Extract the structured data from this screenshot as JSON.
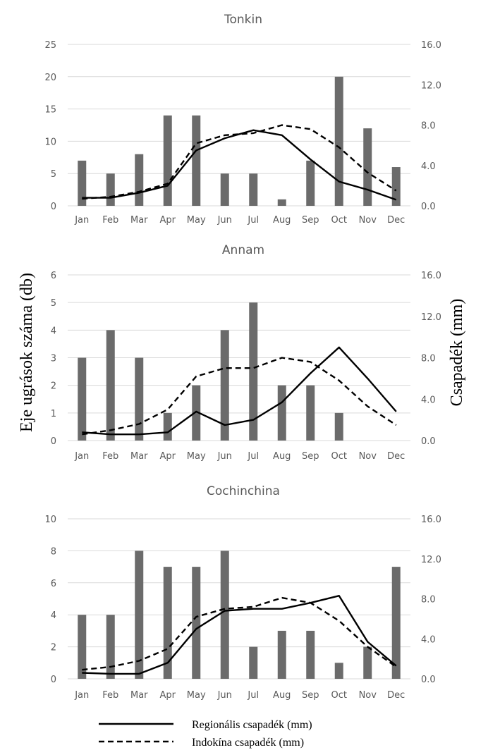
{
  "y_axis_left_label": "Eje ugrások száma (db)",
  "y_axis_right_label": "Csapadék (mm)",
  "legend": {
    "regional": "Regionális csapadék (mm)",
    "indochina": "Indokína csapadék (mm)"
  },
  "colors": {
    "bars": "#6b6b6b",
    "lines": "#000000",
    "grid": "#d9d9d9",
    "text": "#595959"
  },
  "chart_data": [
    {
      "type": "bar",
      "title": "Tonkin",
      "categories": [
        "Jan",
        "Feb",
        "Mar",
        "Apr",
        "May",
        "Jun",
        "Jul",
        "Aug",
        "Sep",
        "Oct",
        "Nov",
        "Dec"
      ],
      "left_ticks": [
        "0",
        "5",
        "10",
        "15",
        "20",
        "25"
      ],
      "right_ticks": [
        "0.0",
        "4.0",
        "8.0",
        "12.0",
        "16.0"
      ],
      "ylim_left": [
        0,
        25
      ],
      "ylim_right": [
        0,
        16
      ],
      "series": [
        {
          "name": "Eje ugrások száma (db)",
          "kind": "bar",
          "axis": "left",
          "values": [
            7,
            5,
            8,
            14,
            14,
            5,
            5,
            1,
            7,
            20,
            12,
            6
          ]
        },
        {
          "name": "Regionális csapadék (mm)",
          "kind": "line",
          "axis": "right",
          "style": "solid",
          "values": [
            0.8,
            0.8,
            1.3,
            2.0,
            5.5,
            6.7,
            7.5,
            7.0,
            4.6,
            2.4,
            1.6,
            0.6
          ]
        },
        {
          "name": "Indokína csapadék (mm)",
          "kind": "line",
          "axis": "right",
          "style": "dashed",
          "values": [
            0.7,
            0.9,
            1.4,
            2.2,
            6.2,
            7.0,
            7.2,
            8.0,
            7.6,
            5.8,
            3.3,
            1.5
          ]
        }
      ]
    },
    {
      "type": "bar",
      "title": "Annam",
      "categories": [
        "Jan",
        "Feb",
        "Mar",
        "Apr",
        "May",
        "Jun",
        "Jul",
        "Aug",
        "Sep",
        "Oct",
        "Nov",
        "Dec"
      ],
      "left_ticks": [
        "0",
        "1",
        "2",
        "3",
        "4",
        "5",
        "6"
      ],
      "right_ticks": [
        "0.0",
        "4.0",
        "8.0",
        "12.0",
        "16.0"
      ],
      "ylim_left": [
        0,
        6
      ],
      "ylim_right": [
        0,
        16
      ],
      "series": [
        {
          "name": "Eje ugrások száma (db)",
          "kind": "bar",
          "axis": "left",
          "values": [
            3,
            4,
            3,
            1,
            2,
            4,
            5,
            2,
            2,
            1,
            0,
            0
          ]
        },
        {
          "name": "Regionális csapadék (mm)",
          "kind": "line",
          "axis": "right",
          "style": "solid",
          "values": [
            0.8,
            0.6,
            0.6,
            0.8,
            2.8,
            1.5,
            2.0,
            3.7,
            6.5,
            9.0,
            6.0,
            2.8
          ]
        },
        {
          "name": "Indokína csapadék (mm)",
          "kind": "line",
          "axis": "right",
          "style": "dashed",
          "values": [
            0.6,
            1.0,
            1.6,
            3.0,
            6.2,
            7.0,
            7.0,
            8.0,
            7.6,
            5.8,
            3.3,
            1.5
          ]
        }
      ]
    },
    {
      "type": "bar",
      "title": "Cochinchina",
      "categories": [
        "Jan",
        "Feb",
        "Mar",
        "Apr",
        "May",
        "Jun",
        "Jul",
        "Aug",
        "Sep",
        "Oct",
        "Nov",
        "Dec"
      ],
      "left_ticks": [
        "0",
        "2",
        "4",
        "6",
        "8",
        "10"
      ],
      "right_ticks": [
        "0.0",
        "4.0",
        "8.0",
        "12.0",
        "16.0"
      ],
      "ylim_left": [
        0,
        10
      ],
      "ylim_right": [
        0,
        16
      ],
      "series": [
        {
          "name": "Eje ugrások száma (db)",
          "kind": "bar",
          "axis": "left",
          "values": [
            4,
            4,
            8,
            7,
            7,
            8,
            2,
            3,
            3,
            1,
            2,
            7
          ]
        },
        {
          "name": "Regionális csapadék (mm)",
          "kind": "line",
          "axis": "right",
          "style": "solid",
          "values": [
            0.6,
            0.5,
            0.5,
            1.6,
            5.0,
            6.8,
            7.0,
            7.0,
            7.6,
            8.3,
            3.7,
            1.3
          ]
        },
        {
          "name": "Indokína csapadék (mm)",
          "kind": "line",
          "axis": "right",
          "style": "dashed",
          "values": [
            0.9,
            1.2,
            1.8,
            3.0,
            6.2,
            7.0,
            7.2,
            8.1,
            7.6,
            5.8,
            3.2,
            1.2
          ]
        }
      ]
    }
  ]
}
